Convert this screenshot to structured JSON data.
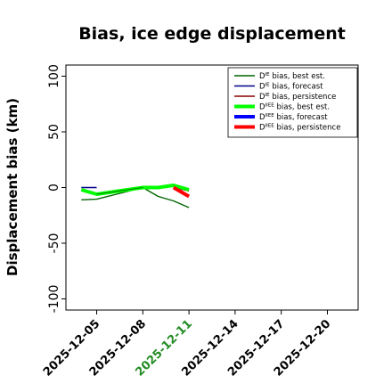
{
  "chart_data": {
    "type": "line",
    "title": "Bias, ice edge displacement",
    "xlabel": "",
    "ylabel": "Displacement bias (km)",
    "ylim": [
      -110,
      110
    ],
    "yticks": [
      -100,
      -50,
      0,
      50,
      100
    ],
    "x_range": [
      "2025-12-03",
      "2025-12-22"
    ],
    "xticks": [
      "2025-12-05",
      "2025-12-08",
      "2025-12-11",
      "2025-12-14",
      "2025-12-17",
      "2025-12-20"
    ],
    "highlighted_xtick": "2025-12-11",
    "highlight_color": "#228b22",
    "legend_position": "top-right",
    "series": [
      {
        "name": "D^IE bias, best est.",
        "color": "#006400",
        "width": 1.4,
        "points": [
          [
            "2025-12-04",
            -11
          ],
          [
            "2025-12-05",
            -10.5
          ],
          [
            "2025-12-08",
            0
          ],
          [
            "2025-12-09",
            -8
          ],
          [
            "2025-12-10",
            -12
          ],
          [
            "2025-12-11",
            -18
          ]
        ]
      },
      {
        "name": "D^IE bias, forecast",
        "color": "#00008b",
        "width": 1.4,
        "points": [
          [
            "2025-12-04",
            0
          ],
          [
            "2025-12-05",
            0
          ]
        ]
      },
      {
        "name": "D^IE bias, persistence",
        "color": "#8b0000",
        "width": 1.4,
        "points": [
          [
            "2025-12-10",
            0
          ],
          [
            "2025-12-11",
            -3
          ]
        ]
      },
      {
        "name": "D^IIEE bias, best est.",
        "color": "#00ff00",
        "width": 4,
        "points": [
          [
            "2025-12-04",
            -2
          ],
          [
            "2025-12-05",
            -6
          ],
          [
            "2025-12-08",
            0
          ],
          [
            "2025-12-09",
            0
          ],
          [
            "2025-12-10",
            2
          ],
          [
            "2025-12-11",
            -2
          ]
        ]
      },
      {
        "name": "D^IIEE bias, forecast",
        "color": "#0000ff",
        "width": 4,
        "points": []
      },
      {
        "name": "D^IIEE bias, persistence",
        "color": "#ff0000",
        "width": 4,
        "points": [
          [
            "2025-12-10",
            0
          ],
          [
            "2025-12-11",
            -8
          ]
        ]
      },
      {
        "name": "",
        "color": "#006400",
        "width": 0.8,
        "points": [
          [
            "2025-12-05",
            -6
          ],
          [
            "2025-12-08",
            0
          ]
        ]
      }
    ],
    "legend": [
      {
        "base": "D",
        "sup": "IE",
        "rest": " bias, best est.",
        "color": "#006400",
        "width": 1.4
      },
      {
        "base": "D",
        "sup": "IE",
        "rest": " bias, forecast",
        "color": "#00008b",
        "width": 1.4
      },
      {
        "base": "D",
        "sup": "IE",
        "rest": " bias, persistence",
        "color": "#8b0000",
        "width": 1.4
      },
      {
        "base": "D",
        "sup": "IIEE",
        "rest": " bias, best est.",
        "color": "#00ff00",
        "width": 4
      },
      {
        "base": "D",
        "sup": "IIEE",
        "rest": " bias, forecast",
        "color": "#0000ff",
        "width": 4
      },
      {
        "base": "D",
        "sup": "IIEE",
        "rest": " bias, persistence",
        "color": "#ff0000",
        "width": 4
      }
    ]
  }
}
